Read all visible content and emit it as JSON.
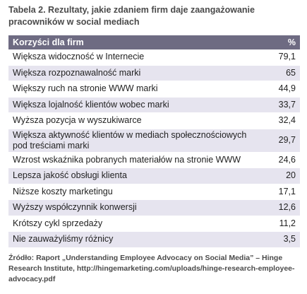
{
  "title": "Tabela 2. Rezultaty, jakie zdaniem firm daje zaangażowanie pracowników w social mediach",
  "table": {
    "header": [
      "Korzyści dla firm",
      "%"
    ],
    "rows": [
      [
        "Większa widoczność w Internecie",
        "79,1"
      ],
      [
        "Większa rozpoznawalność marki",
        "65"
      ],
      [
        "Większy ruch na stronie WWW marki",
        "44,9"
      ],
      [
        "Większa lojalność klientów wobec marki",
        "33,7"
      ],
      [
        "Wyższa pozycja w wyszukiwarce",
        "32,4"
      ],
      [
        "Większa aktywność klientów w mediach społecznościowych pod treściami marki",
        "29,7"
      ],
      [
        "Wzrost wskaźnika pobranych materiałów na stronie WWW",
        "24,6"
      ],
      [
        "Lepsza jakość obsługi klienta",
        "20"
      ],
      [
        "Niższe koszty marketingu",
        "17,1"
      ],
      [
        "Wyższy współczynnik konwersji",
        "12,6"
      ],
      [
        "Krótszy cykl sprzedaży",
        "11,2"
      ],
      [
        "Nie zauważyliśmy różnicy",
        "3,5"
      ]
    ]
  },
  "source": "Źródło: Raport „Understanding Employee Advocacy on Social Media” – Hinge Research Institute, http://hingemarketing.com/uploads/hinge-research-employee-advocacy.pdf"
}
